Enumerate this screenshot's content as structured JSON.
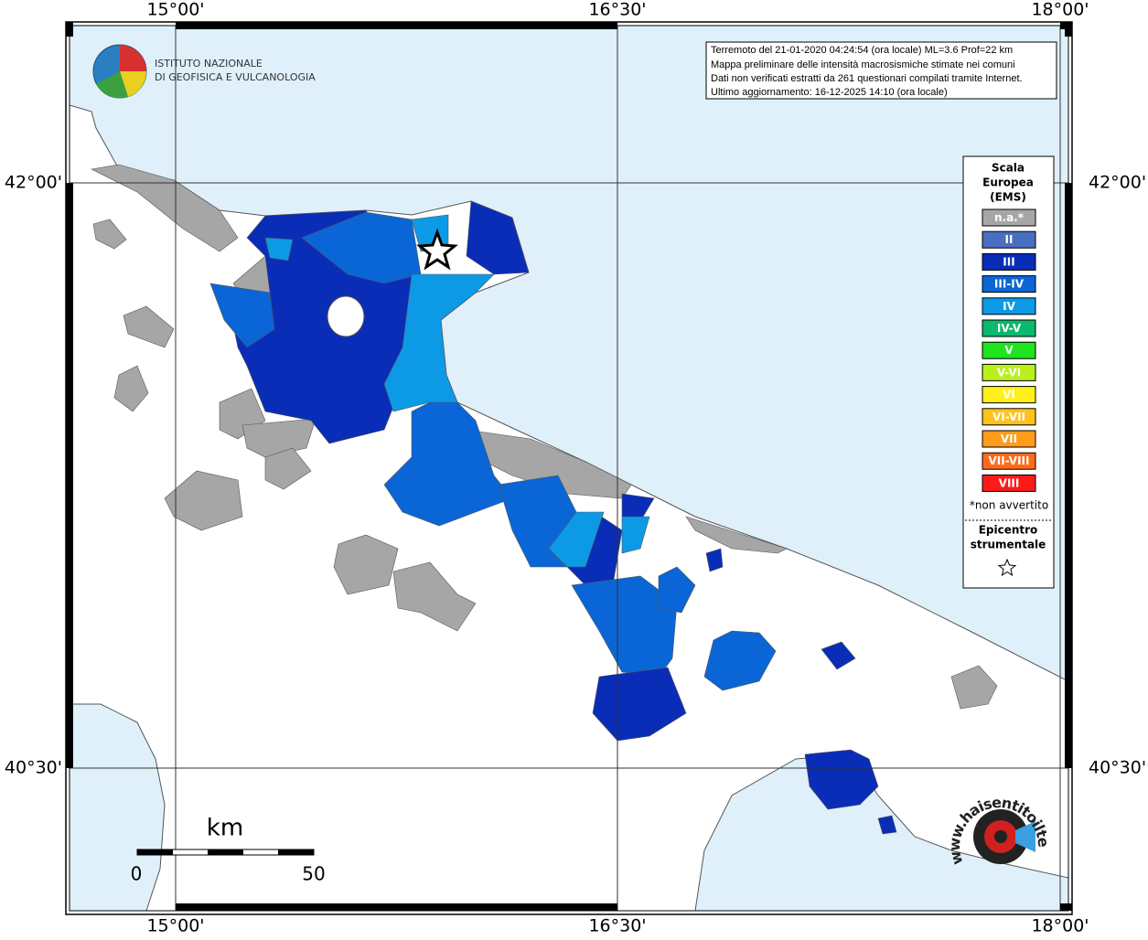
{
  "graticule": {
    "longitudes": [
      "15°00'",
      "16°30'",
      "18°00'"
    ],
    "latitudes": [
      "42°00'",
      "40°30'"
    ]
  },
  "logo": {
    "lines": [
      "ISTITUTO NAZIONALE",
      "DI GEOFISICA E VULCANOLOGIA"
    ]
  },
  "info_box": {
    "lines": [
      "Terremoto del 21-01-2020 04:24:54 (ora locale) ML=3.6 Prof=22 km",
      "Mappa preliminare delle intensità macrosismiche stimate nei comuni",
      "Dati non verificati estratti da 261 questionari compilati tramite Internet.",
      "Ultimo aggiornamento: 16-12-2025 14:10 (ora locale)"
    ]
  },
  "legend": {
    "title": [
      "Scala",
      "Europea",
      "(EMS)"
    ],
    "items": [
      {
        "label": "n.a.*",
        "color": "#a6a6a6"
      },
      {
        "label": "II",
        "color": "#4a6ec0"
      },
      {
        "label": "III",
        "color": "#0a2db8"
      },
      {
        "label": "III-IV",
        "color": "#0a66d6"
      },
      {
        "label": "IV",
        "color": "#0c9ae6"
      },
      {
        "label": "IV-V",
        "color": "#0bb86e"
      },
      {
        "label": "V",
        "color": "#1ee31e"
      },
      {
        "label": "V-VI",
        "color": "#b8f01a"
      },
      {
        "label": "VI",
        "color": "#fff01a"
      },
      {
        "label": "VI-VII",
        "color": "#ffc21a"
      },
      {
        "label": "VII",
        "color": "#ff9c1a"
      },
      {
        "label": "VII-VIII",
        "color": "#ff6a1a"
      },
      {
        "label": "VIII",
        "color": "#ff1a1a"
      }
    ],
    "note": "*non avvertito",
    "epicenter_title": [
      "Epicentro",
      "strumentale"
    ]
  },
  "scale_bar": {
    "unit": "km",
    "labels": [
      "0",
      "50"
    ]
  },
  "site_logo": {
    "text": "www.haisentitoilterremoto.it"
  }
}
